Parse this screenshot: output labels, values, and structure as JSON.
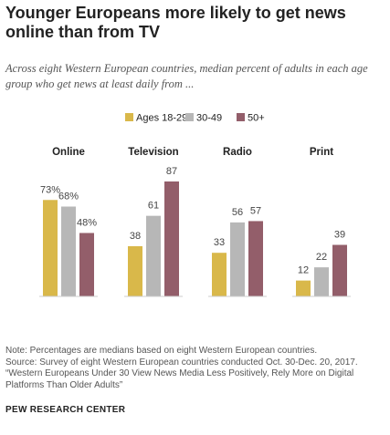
{
  "title": "Younger Europeans more likely to get news online than from TV",
  "subtitle": "Across eight Western European countries, median percent of adults in each age group who get news at least daily from ...",
  "notes": {
    "note": "Note: Percentages are medians based on eight Western European countries.",
    "source": "Source: Survey of eight Western European countries conducted Oct. 30-Dec. 20, 2017.",
    "report": "“Western Europeans Under 30 View News Media Less Positively, Rely More on Digital Platforms Than Older Adults”"
  },
  "credit": "PEW RESEARCH CENTER",
  "colors": {
    "series": [
      "#d9b84a",
      "#b7b7b7",
      "#935e6a"
    ],
    "baseline": "#cccccc",
    "text": "#222222"
  },
  "chart_data": {
    "type": "bar",
    "categories": [
      "Online",
      "Television",
      "Radio",
      "Print"
    ],
    "series": [
      {
        "name": "Ages 18-29",
        "values": [
          73,
          38,
          33,
          12
        ]
      },
      {
        "name": "30-49",
        "values": [
          68,
          61,
          56,
          22
        ]
      },
      {
        "name": "50+",
        "values": [
          48,
          87,
          57,
          39
        ]
      }
    ],
    "value_labels": [
      [
        "73%",
        "38",
        "33",
        "12"
      ],
      [
        "68%",
        "61",
        "56",
        "22"
      ],
      [
        "48%",
        "87",
        "57",
        "39"
      ]
    ],
    "ylim": [
      0,
      100
    ],
    "grid": false,
    "legend_position": "top-center"
  }
}
